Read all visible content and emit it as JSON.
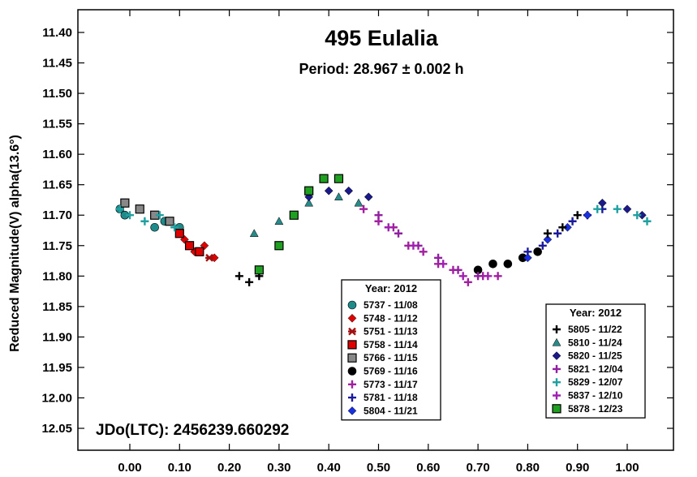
{
  "chart_data": {
    "type": "scatter",
    "title": "495 Eulalia",
    "subtitle": "Period: 28.967 ± 0.002 h",
    "ylabel": "Reduced Magnitude(V) alpha(13.6°)",
    "xlabel": "",
    "annotation": "JDo(LTC): 2456239.660292",
    "xlim": [
      -0.15,
      1.1
    ],
    "ylim": [
      12.1,
      11.35
    ],
    "y_inverted": true,
    "x_ticks": [
      "0.00",
      "0.10",
      "0.20",
      "0.30",
      "0.40",
      "0.50",
      "0.60",
      "0.70",
      "0.80",
      "0.90",
      "1.00"
    ],
    "y_ticks": [
      "11.40",
      "11.45",
      "11.50",
      "11.55",
      "11.60",
      "11.65",
      "11.70",
      "11.75",
      "11.80",
      "11.85",
      "11.90",
      "11.95",
      "12.00",
      "12.05"
    ],
    "grid": false,
    "legend_left": {
      "title": "Year: 2012",
      "placement": "bottom-center",
      "entries": [
        {
          "label": "5737 - 11/08",
          "symbol": "circle",
          "color": "#1f8a8a"
        },
        {
          "label": "5748 - 11/12",
          "symbol": "diamond",
          "color": "#e00000"
        },
        {
          "label": "5751 - 11/13",
          "symbol": "asterisk",
          "color": "#a01010"
        },
        {
          "label": "5758 - 11/14",
          "symbol": "square",
          "color": "#e00000"
        },
        {
          "label": "5766 - 11/15",
          "symbol": "square",
          "color": "#888888"
        },
        {
          "label": "5769 - 11/16",
          "symbol": "circle",
          "color": "#000000"
        },
        {
          "label": "5773 - 11/17",
          "symbol": "plus",
          "color": "#a020a0"
        },
        {
          "label": "5781 - 11/18",
          "symbol": "plus",
          "color": "#1a1a9a"
        },
        {
          "label": "5804 - 11/21",
          "symbol": "diamond",
          "color": "#1a30e0"
        }
      ]
    },
    "legend_right": {
      "title": "Year: 2012",
      "placement": "bottom-right",
      "entries": [
        {
          "label": "5805 - 11/22",
          "symbol": "plus",
          "color": "#000000"
        },
        {
          "label": "5810 - 11/24",
          "symbol": "triangle",
          "color": "#2a8a8a"
        },
        {
          "label": "5820 - 11/25",
          "symbol": "diamond",
          "color": "#1a1a8a"
        },
        {
          "label": "5821 - 12/04",
          "symbol": "plus",
          "color": "#9020a0"
        },
        {
          "label": "5829 - 12/07",
          "symbol": "plus",
          "color": "#20a0a0"
        },
        {
          "label": "5837 - 12/10",
          "symbol": "plus",
          "color": "#a020b0"
        },
        {
          "label": "5878 - 12/23",
          "symbol": "square",
          "color": "#20a020"
        }
      ]
    },
    "series": [
      {
        "session": "5737",
        "x": [
          -0.02,
          -0.01,
          0.02,
          0.05,
          0.07,
          0.1
        ],
        "y": [
          11.69,
          11.7,
          11.69,
          11.72,
          11.71,
          11.72
        ]
      },
      {
        "session": "5748",
        "x": [
          0.11,
          0.13,
          0.15,
          0.17
        ],
        "y": [
          11.74,
          11.76,
          11.75,
          11.77
        ]
      },
      {
        "session": "5751",
        "x": [
          0.12,
          0.14,
          0.16
        ],
        "y": [
          11.75,
          11.76,
          11.77
        ]
      },
      {
        "session": "5758",
        "x": [
          0.1,
          0.12,
          0.14
        ],
        "y": [
          11.73,
          11.75,
          11.76
        ]
      },
      {
        "session": "5766",
        "x": [
          -0.01,
          0.02,
          0.05,
          0.08
        ],
        "y": [
          11.68,
          11.69,
          11.7,
          11.71
        ]
      },
      {
        "session": "5769",
        "x": [
          0.7,
          0.73,
          0.76,
          0.79,
          0.82
        ],
        "y": [
          11.79,
          11.78,
          11.78,
          11.77,
          11.76
        ]
      },
      {
        "session": "5773",
        "x": [
          0.47,
          0.5,
          0.53,
          0.56,
          0.59,
          0.62,
          0.65,
          0.68,
          0.71,
          0.74
        ],
        "y": [
          11.69,
          11.71,
          11.72,
          11.75,
          11.76,
          11.78,
          11.79,
          11.81,
          11.8,
          11.8
        ]
      },
      {
        "session": "5781",
        "x": [
          0.8,
          0.83,
          0.86,
          0.89,
          0.92,
          0.95
        ],
        "y": [
          11.76,
          11.75,
          11.73,
          11.71,
          11.7,
          11.69
        ]
      },
      {
        "session": "5804",
        "x": [
          0.8,
          0.84,
          0.88,
          0.92
        ],
        "y": [
          11.77,
          11.74,
          11.72,
          11.7
        ]
      },
      {
        "session": "5805",
        "x": [
          0.22,
          0.24,
          0.26,
          0.84,
          0.87,
          0.9
        ],
        "y": [
          11.8,
          11.81,
          11.8,
          11.73,
          11.72,
          11.7
        ]
      },
      {
        "session": "5810",
        "x": [
          0.25,
          0.3,
          0.36,
          0.42,
          0.46
        ],
        "y": [
          11.73,
          11.71,
          11.68,
          11.67,
          11.68
        ]
      },
      {
        "session": "5820",
        "x": [
          0.36,
          0.4,
          0.44,
          0.48,
          0.95,
          1.0,
          1.03
        ],
        "y": [
          11.67,
          11.66,
          11.66,
          11.67,
          11.68,
          11.69,
          11.7
        ]
      },
      {
        "session": "5821",
        "x": [
          0.5,
          0.54,
          0.58,
          0.62,
          0.66,
          0.7
        ],
        "y": [
          11.7,
          11.73,
          11.75,
          11.77,
          11.79,
          11.8
        ]
      },
      {
        "session": "5829",
        "x": [
          -0.02,
          0.0,
          0.03,
          0.06,
          0.09,
          0.94,
          0.98,
          1.02,
          1.04
        ],
        "y": [
          11.69,
          11.7,
          11.71,
          11.7,
          11.72,
          11.69,
          11.69,
          11.7,
          11.71
        ]
      },
      {
        "session": "5837",
        "x": [
          0.52,
          0.57,
          0.63,
          0.67,
          0.72
        ],
        "y": [
          11.72,
          11.75,
          11.78,
          11.8,
          11.8
        ]
      },
      {
        "session": "5878",
        "x": [
          0.26,
          0.3,
          0.33,
          0.36,
          0.39,
          0.42
        ],
        "y": [
          11.79,
          11.75,
          11.7,
          11.66,
          11.64,
          11.64
        ]
      }
    ]
  }
}
